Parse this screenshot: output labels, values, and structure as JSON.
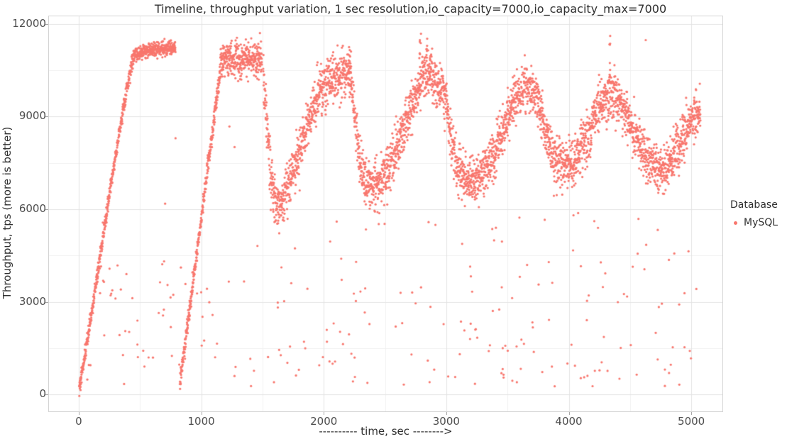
{
  "chart_data": {
    "type": "scatter",
    "title": "Timeline, throughput variation, 1 sec resolution,io_capacity=7000,io_capacity_max=7000",
    "xlabel": "---------- time, sec -------->",
    "ylabel": "Throughput, tps (more is better)",
    "legend": {
      "title": "Database",
      "position": "right",
      "items": [
        {
          "label": "MySQL",
          "color": "#F8766D"
        }
      ]
    },
    "xlim": [
      -243,
      5254
    ],
    "ylim": [
      -550,
      12250
    ],
    "x_ticks": [
      0,
      1000,
      2000,
      3000,
      4000,
      5000
    ],
    "y_ticks": [
      0,
      3000,
      6000,
      9000,
      12000
    ],
    "x_minor_gridlines": [
      500,
      1500,
      2500,
      3500,
      4500
    ],
    "y_minor_gridlines": [
      1500,
      4500,
      7500,
      10500
    ],
    "grid": "on",
    "point_color": "#F8766D",
    "point_radius": 1.6,
    "major_grid_color": "#e3e3e3",
    "minor_grid_color": "#f1f1f1",
    "panel_border_color": "#d4d4d4",
    "seed": 42,
    "series_model": {
      "description": "MySQL throughput tps vs time sec, 1 point per second: ramp to ~11200 plateau, restart ramp to ~10900 plateau, then ~600-sec oscillations between ~7000 troughs and ~10300 peaks, plus sparse low outliers",
      "band_segments": [
        {
          "name": "ramp1",
          "n": 440,
          "sd": 130,
          "points": [
            [
              3,
              150
            ],
            [
              60,
              1500
            ],
            [
              150,
              3800
            ],
            [
              250,
              6500
            ],
            [
              340,
              8700
            ],
            [
              410,
              10300
            ],
            [
              445,
              10850
            ]
          ]
        },
        {
          "name": "plateau1",
          "n": 350,
          "sd": 110,
          "points": [
            [
              445,
              10950
            ],
            [
              560,
              11150
            ],
            [
              700,
              11200
            ],
            [
              790,
              11230
            ]
          ]
        },
        {
          "name": "ramp2",
          "n": 335,
          "sd": 150,
          "points": [
            [
              825,
              350
            ],
            [
              900,
              2600
            ],
            [
              1000,
              5700
            ],
            [
              1080,
              8200
            ],
            [
              1155,
              10450
            ]
          ]
        },
        {
          "name": "plateau2",
          "n": 345,
          "sd": 300,
          "points": [
            [
              1155,
              10750
            ],
            [
              1240,
              10950
            ],
            [
              1330,
              10800
            ],
            [
              1420,
              10900
            ],
            [
              1495,
              10800
            ]
          ]
        },
        {
          "name": "oscillation",
          "n": 3350,
          "sd": 380,
          "points": [
            [
              1505,
              10300
            ],
            [
              1535,
              9000
            ],
            [
              1570,
              7000
            ],
            [
              1615,
              5950
            ],
            [
              1660,
              6200
            ],
            [
              1720,
              6900
            ],
            [
              1800,
              7900
            ],
            [
              1880,
              8900
            ],
            [
              1960,
              9800
            ],
            [
              2040,
              10250
            ],
            [
              2130,
              10350
            ],
            [
              2200,
              10500
            ],
            [
              2235,
              9800
            ],
            [
              2270,
              8400
            ],
            [
              2305,
              7250
            ],
            [
              2360,
              6850
            ],
            [
              2430,
              6800
            ],
            [
              2500,
              7100
            ],
            [
              2570,
              7700
            ],
            [
              2660,
              8700
            ],
            [
              2740,
              9600
            ],
            [
              2810,
              10250
            ],
            [
              2880,
              10300
            ],
            [
              2940,
              9900
            ],
            [
              3000,
              9500
            ],
            [
              3040,
              8300
            ],
            [
              3090,
              7300
            ],
            [
              3160,
              6950
            ],
            [
              3240,
              7000
            ],
            [
              3320,
              7300
            ],
            [
              3400,
              7900
            ],
            [
              3480,
              8800
            ],
            [
              3560,
              9600
            ],
            [
              3640,
              10000
            ],
            [
              3720,
              9800
            ],
            [
              3770,
              9200
            ],
            [
              3820,
              8300
            ],
            [
              3880,
              7700
            ],
            [
              3950,
              7400
            ],
            [
              4030,
              7400
            ],
            [
              4100,
              7900
            ],
            [
              4170,
              8500
            ],
            [
              4240,
              9300
            ],
            [
              4310,
              9700
            ],
            [
              4380,
              9700
            ],
            [
              4440,
              9400
            ],
            [
              4500,
              8800
            ],
            [
              4560,
              8200
            ],
            [
              4620,
              7700
            ],
            [
              4690,
              7400
            ],
            [
              4760,
              7300
            ],
            [
              4830,
              7600
            ],
            [
              4900,
              8000
            ],
            [
              4960,
              8600
            ],
            [
              5020,
              9000
            ],
            [
              5075,
              9200
            ]
          ]
        }
      ],
      "spikes": [
        {
          "x": [
            2203,
            2222
          ],
          "y": [
            9600,
            11300
          ],
          "n": 15
        },
        {
          "x": [
            2780,
            2795
          ],
          "y": [
            10600,
            11720
          ],
          "n": 8
        },
        {
          "x": [
            2832,
            2846
          ],
          "y": [
            10400,
            11730
          ],
          "n": 9
        },
        {
          "x": [
            2860,
            2880
          ],
          "y": [
            10700,
            11300
          ],
          "n": 5
        },
        {
          "x": [
            4318,
            4340
          ],
          "y": [
            10150,
            11620
          ],
          "n": 9
        }
      ],
      "singles": [
        [
          4628,
          11480
        ],
        [
          790,
          8300
        ],
        [
          705,
          6180
        ],
        [
          360,
          9400
        ],
        [
          1230,
          8680
        ],
        [
          1272,
          8015
        ]
      ],
      "outlier_clouds": [
        {
          "n": 95,
          "x": [
            40,
            5050
          ],
          "y": [
            250,
            1650
          ]
        },
        {
          "n": 100,
          "x": [
            120,
            5050
          ],
          "y": [
            1700,
            4400
          ]
        },
        {
          "n": 30,
          "x": [
            1450,
            5050
          ],
          "y": [
            4500,
            6050
          ]
        },
        {
          "n": 12,
          "x": [
            150,
            800
          ],
          "y": [
            3000,
            4300
          ]
        }
      ]
    }
  }
}
